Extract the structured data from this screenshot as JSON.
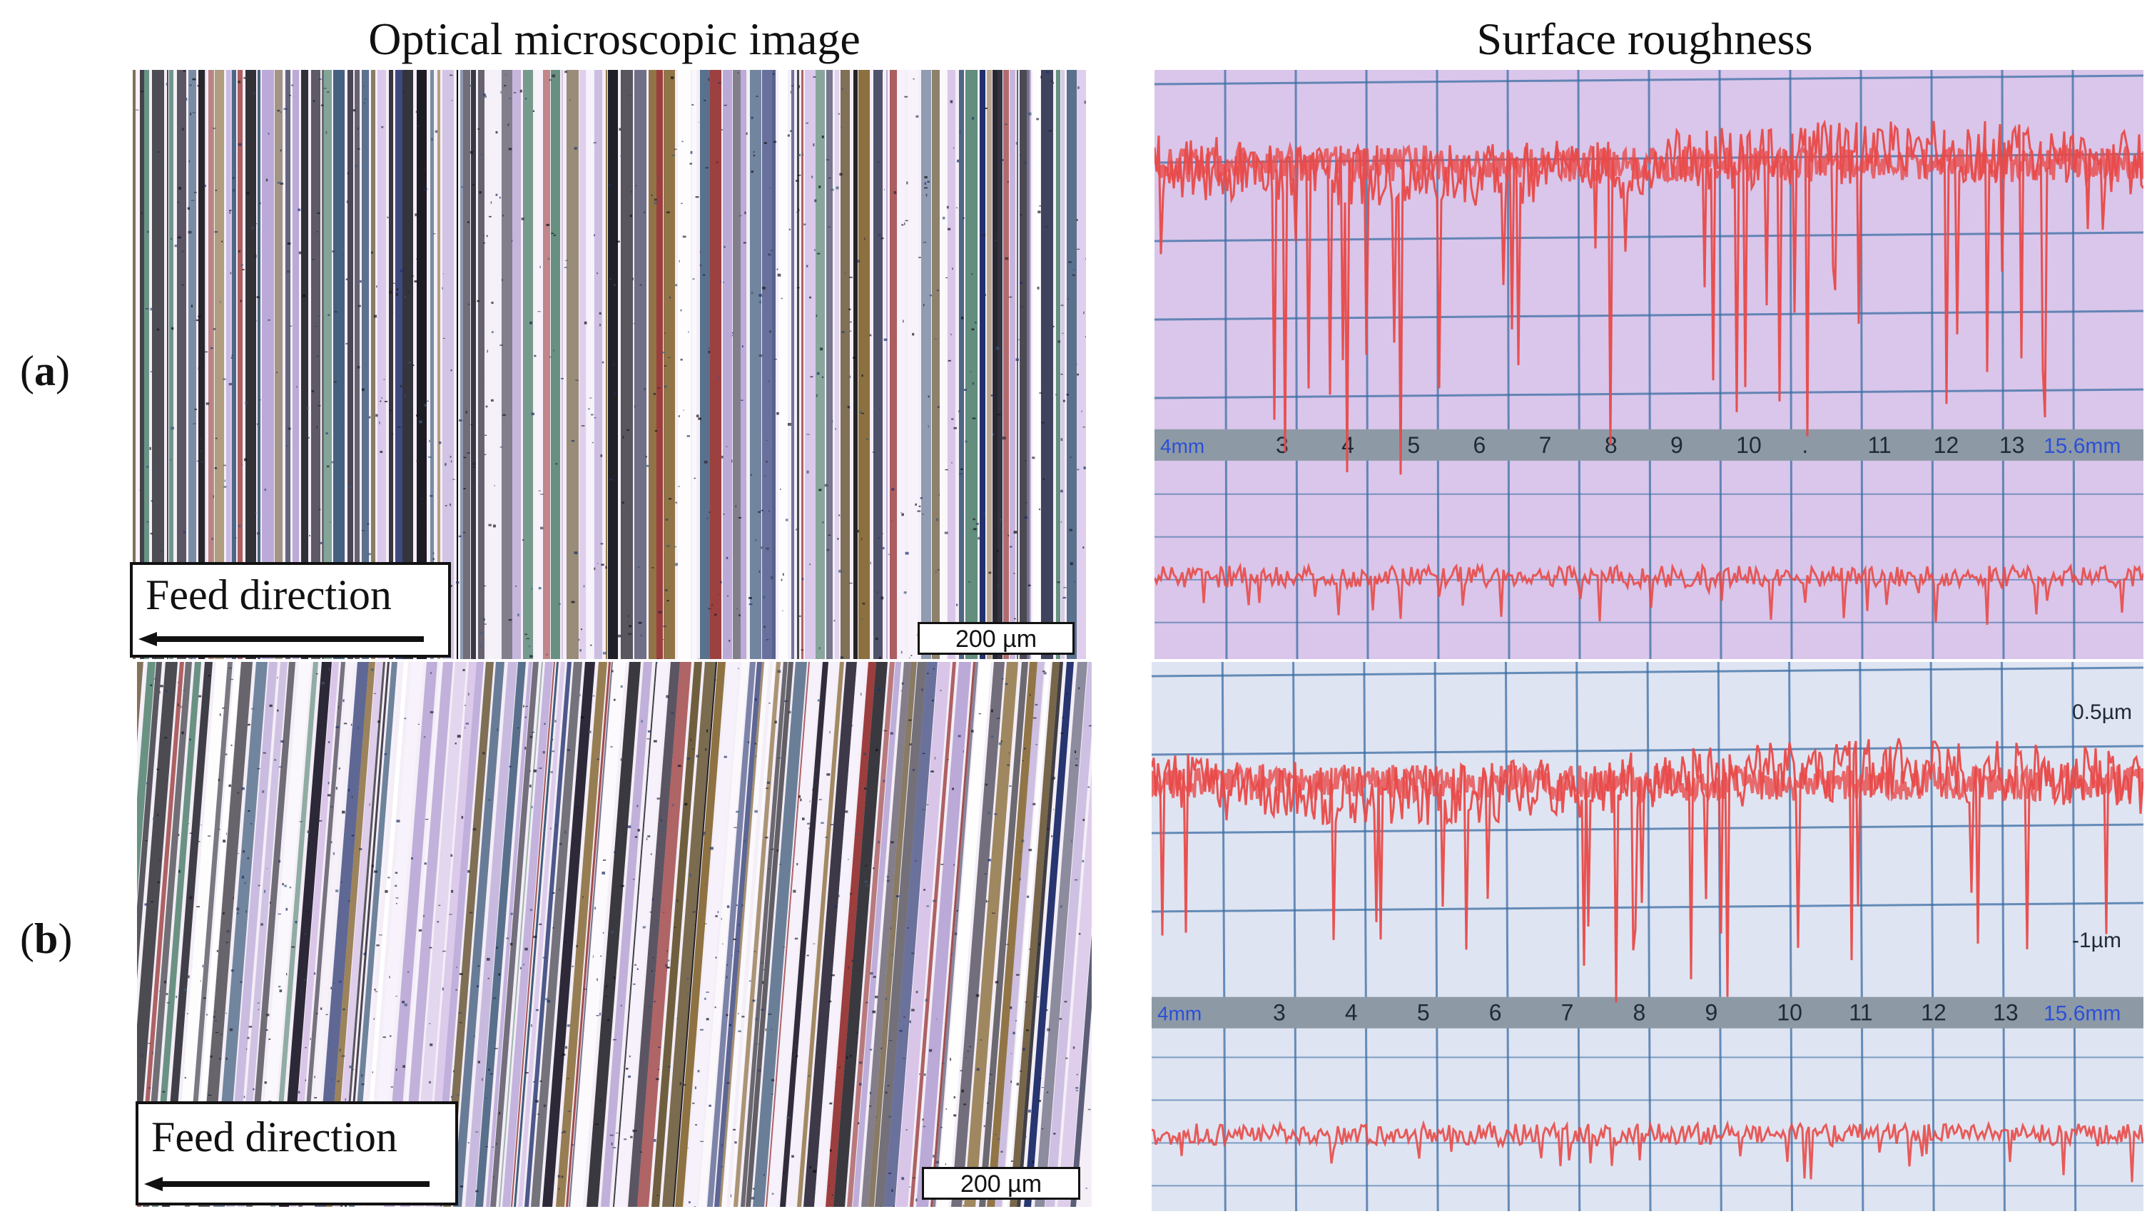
{
  "figure": {
    "column_titles": [
      "Optical microscopic image",
      "Surface roughness"
    ],
    "rows": [
      {
        "label_open": "(",
        "label_letter": "a",
        "label_close": ")",
        "feed_label": "Feed direction",
        "scale_bar": "200 µm",
        "ruler": {
          "start": "4mm",
          "ticks": [
            "3",
            "4",
            "5",
            "6",
            "7",
            "8",
            "9",
            "10",
            ".",
            "11",
            "12",
            "13"
          ],
          "end": "15.6mm",
          "y_labels": []
        }
      },
      {
        "label_open": "(",
        "label_letter": "b",
        "label_close": ")",
        "feed_label": "Feed direction",
        "scale_bar": "200 µm",
        "ruler": {
          "start": "4mm",
          "ticks": [
            "3",
            "4",
            "5",
            "6",
            "7",
            "8",
            "9",
            "10",
            "11",
            "12",
            "13"
          ],
          "end": "15.6mm",
          "y_labels": [
            "0.5µm",
            "-1µm"
          ]
        }
      }
    ],
    "colors": {
      "trace": "#e84a48",
      "screen_a": "#d9c6ea",
      "screen_b": "#dfe4f2",
      "ruler_bar": "#8d9aa6",
      "ruler_end_text": "#2c4fd6"
    }
  }
}
